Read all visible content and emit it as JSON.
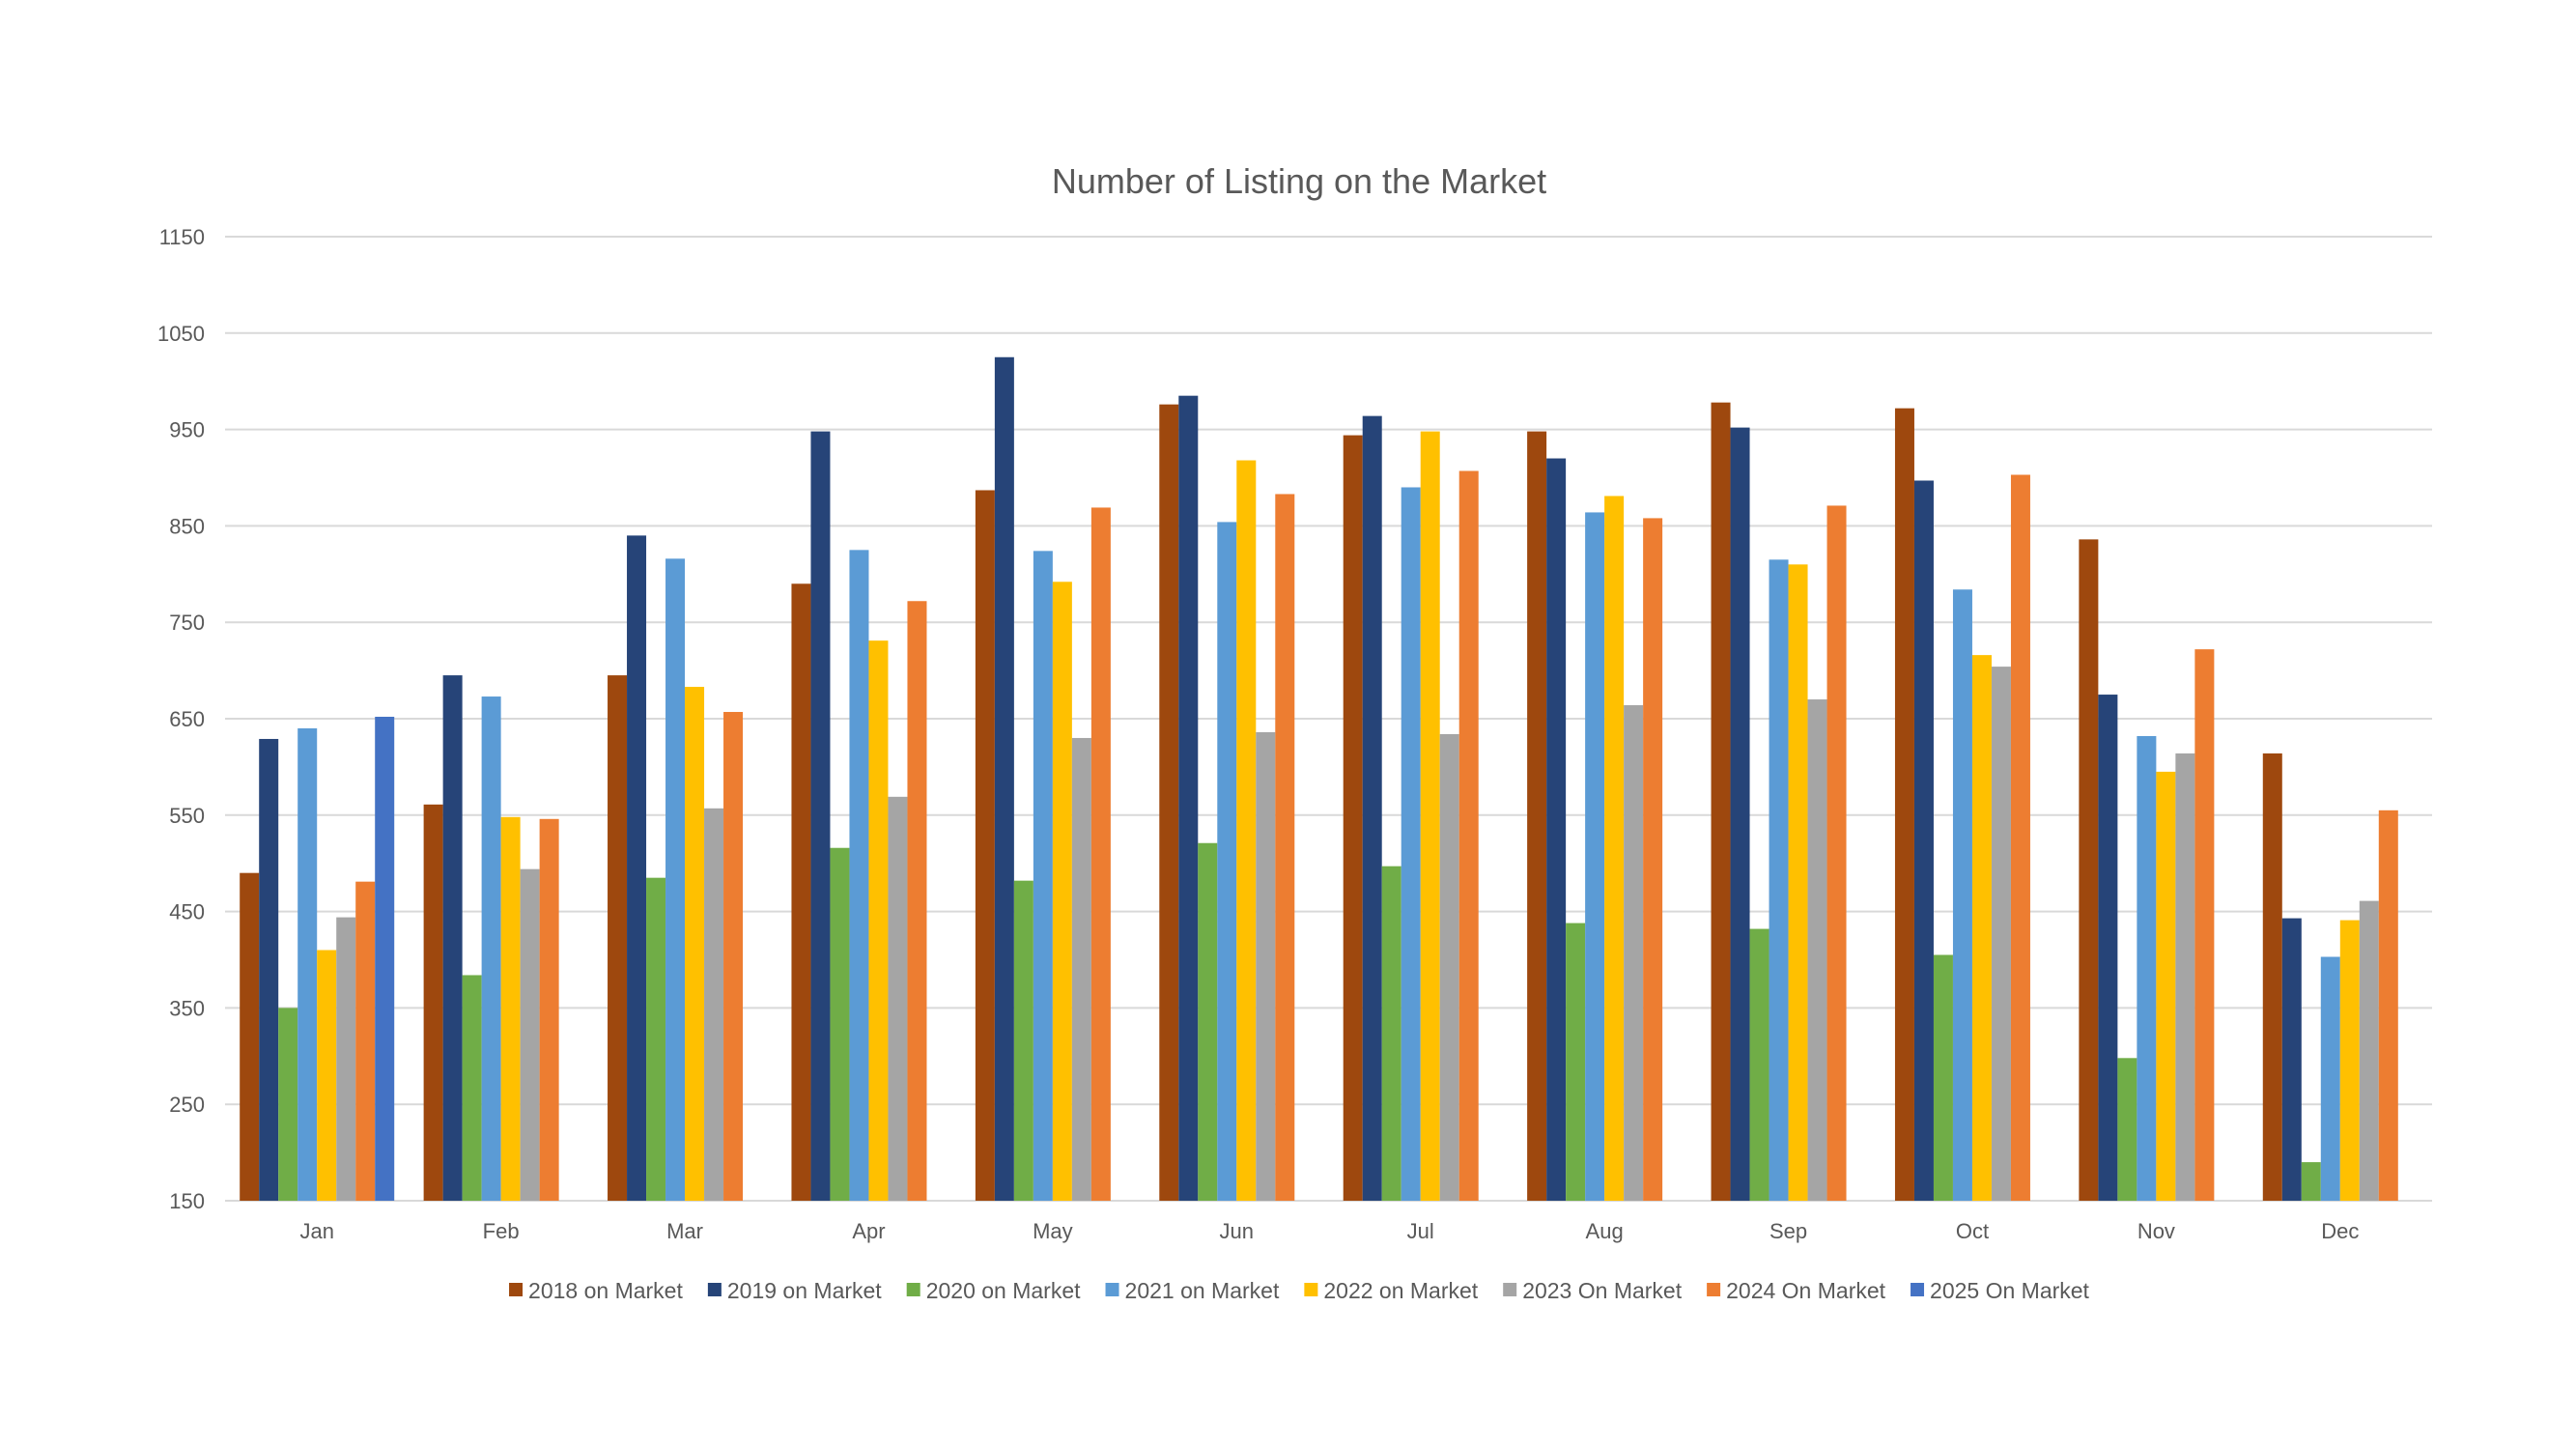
{
  "chart_data": {
    "type": "bar",
    "title": "Number of Listing on the Market",
    "xlabel": "",
    "ylabel": "",
    "ylim": [
      150,
      1150
    ],
    "yticks": [
      150,
      250,
      350,
      450,
      550,
      650,
      750,
      850,
      950,
      1050,
      1150
    ],
    "grid": true,
    "legend_position": "bottom",
    "categories": [
      "Jan",
      "Feb",
      "Mar",
      "Apr",
      "May",
      "Jun",
      "Jul",
      "Aug",
      "Sep",
      "Oct",
      "Nov",
      "Dec"
    ],
    "series": [
      {
        "name": "2018 on Market",
        "color": "#9e480e",
        "values": [
          490,
          561,
          695,
          790,
          887,
          976,
          944,
          948,
          978,
          972,
          836,
          614
        ]
      },
      {
        "name": "2019 on Market",
        "color": "#264478",
        "values": [
          629,
          695,
          840,
          948,
          1025,
          985,
          964,
          920,
          952,
          897,
          675,
          443
        ]
      },
      {
        "name": "2020 on Market",
        "color": "#70ad47",
        "values": [
          350,
          384,
          485,
          516,
          482,
          521,
          497,
          438,
          432,
          405,
          298,
          190
        ]
      },
      {
        "name": "2021 on Market",
        "color": "#5b9bd5",
        "values": [
          640,
          673,
          816,
          825,
          824,
          854,
          890,
          864,
          815,
          784,
          632,
          403
        ]
      },
      {
        "name": "2022 on Market",
        "color": "#ffc000",
        "values": [
          410,
          548,
          683,
          731,
          792,
          918,
          948,
          881,
          810,
          716,
          595,
          441
        ]
      },
      {
        "name": "2023 On Market",
        "color": "#a5a5a5",
        "values": [
          444,
          494,
          557,
          569,
          630,
          636,
          634,
          664,
          670,
          704,
          614,
          461
        ]
      },
      {
        "name": "2024 On Market",
        "color": "#ed7d31",
        "values": [
          481,
          546,
          657,
          772,
          869,
          883,
          907,
          858,
          871,
          903,
          722,
          555
        ]
      },
      {
        "name": "2025 On Market",
        "color": "#4472c4",
        "values": [
          652,
          null,
          null,
          null,
          null,
          null,
          null,
          null,
          null,
          null,
          null,
          null
        ]
      }
    ]
  }
}
